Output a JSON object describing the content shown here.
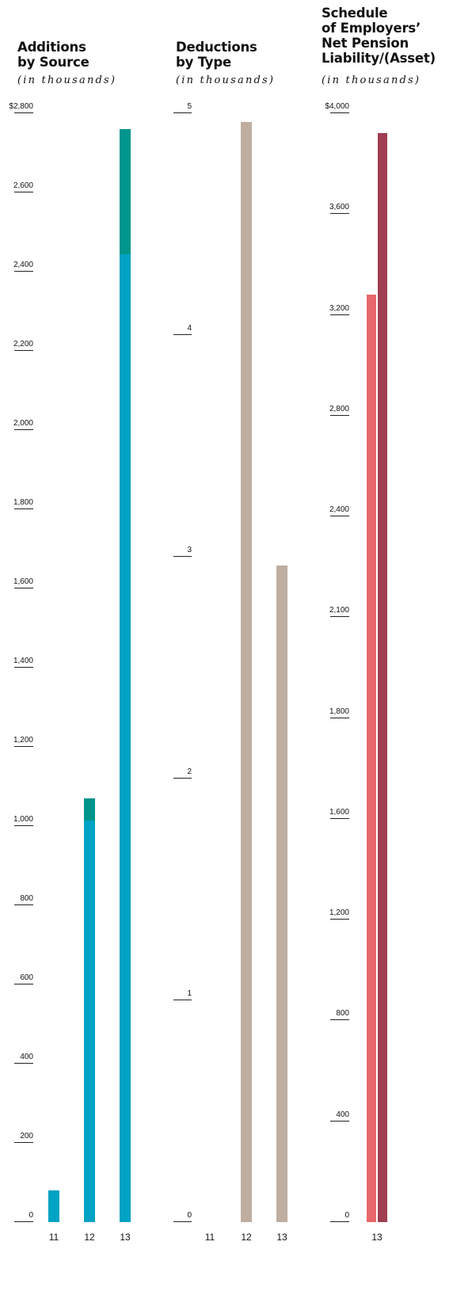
{
  "chart_data": [
    {
      "type": "bar",
      "stacked": true,
      "title": "Additions by Source",
      "subtitle": "(in thousands)",
      "categories": [
        "11",
        "12",
        "13"
      ],
      "series": [
        {
          "values": [
            80,
            1015,
            2445
          ],
          "color": "#00a3c4"
        },
        {
          "values": [
            0,
            55,
            315
          ],
          "color": "#00958c"
        }
      ],
      "ylim": [
        0,
        2800
      ],
      "yticks": [
        0,
        200,
        400,
        600,
        800,
        1000,
        1200,
        1400,
        1600,
        1800,
        2000,
        2200,
        2400,
        2600,
        2800
      ],
      "ytick_labels": [
        "0",
        "200",
        "400",
        "600",
        "800",
        "1,000",
        "1,200",
        "1,400",
        "1,600",
        "1,800",
        "2,000",
        "2,200",
        "2,400",
        "2,600",
        "$2,800"
      ]
    },
    {
      "type": "bar",
      "title": "Deductions by Type",
      "subtitle": "(in thousands)",
      "categories": [
        "11",
        "12",
        "13"
      ],
      "series": [
        {
          "values": [
            0,
            4.96,
            2.96
          ],
          "color": "#bfaea0"
        }
      ],
      "ylim": [
        0,
        5
      ],
      "yticks": [
        0,
        1,
        2,
        3,
        4,
        5
      ],
      "ytick_labels": [
        "0",
        "1",
        "2",
        "3",
        "4",
        "5"
      ]
    },
    {
      "type": "bar",
      "title": "Schedule of Employers’ Net Pension Liability/(Asset)",
      "subtitle": "(in thousands)",
      "categories": [
        "13"
      ],
      "series": [
        {
          "values": [
            3280
          ],
          "color": "#e8676a"
        },
        {
          "values": [
            3920
          ],
          "color": "#a03e52"
        }
      ],
      "ylim": [
        0,
        4000
      ],
      "yticks": [
        0,
        400,
        800,
        1200,
        1600,
        1800,
        2100,
        2400,
        2800,
        3200,
        3600,
        4000
      ],
      "ytick_labels": [
        "0",
        "400",
        "800",
        "1,200",
        "1,600",
        "1,800",
        "2,100",
        "2,400",
        "2,800",
        "3,200",
        "3,600",
        "$4,000"
      ]
    }
  ],
  "panels": {
    "additions": {
      "title_lines": [
        "Additions",
        "by Source"
      ],
      "subtitle": "(in thousands)"
    },
    "deductions": {
      "title_lines": [
        "Deductions",
        "by Type"
      ],
      "subtitle": "(in thousands)"
    },
    "schedule": {
      "title_lines": [
        "Schedule",
        "of Employers’",
        "Net Pension",
        "Liability/(Asset)"
      ],
      "subtitle": "(in thousands)"
    }
  }
}
